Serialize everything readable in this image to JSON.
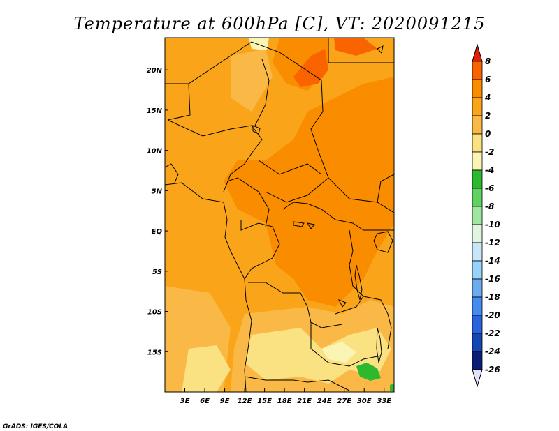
{
  "title": "Temperature at 600hPa [C], VT: 2020091215",
  "credit": "GrADS: IGES/COLA",
  "map": {
    "lon_range": [
      0,
      34.5
    ],
    "lat_range": [
      -20,
      24
    ],
    "x_ticks": [
      {
        "value": 3,
        "label": "3E"
      },
      {
        "value": 6,
        "label": "6E"
      },
      {
        "value": 9,
        "label": "9E"
      },
      {
        "value": 12,
        "label": "12E"
      },
      {
        "value": 15,
        "label": "15E"
      },
      {
        "value": 18,
        "label": "18E"
      },
      {
        "value": 21,
        "label": "21E"
      },
      {
        "value": 24,
        "label": "24E"
      },
      {
        "value": 27,
        "label": "27E"
      },
      {
        "value": 30,
        "label": "30E"
      },
      {
        "value": 33,
        "label": "33E"
      }
    ],
    "y_ticks": [
      {
        "value": 20,
        "label": "20N"
      },
      {
        "value": 15,
        "label": "15N"
      },
      {
        "value": 10,
        "label": "10N"
      },
      {
        "value": 5,
        "label": "5N"
      },
      {
        "value": 0,
        "label": "EQ"
      },
      {
        "value": -5,
        "label": "5S"
      },
      {
        "value": -10,
        "label": "10S"
      },
      {
        "value": -15,
        "label": "15S"
      }
    ]
  },
  "colorbar": {
    "levels": [
      "8",
      "6",
      "4",
      "2",
      "0",
      "-2",
      "-4",
      "-6",
      "-8",
      "-10",
      "-12",
      "-14",
      "-16",
      "-18",
      "-20",
      "-22",
      "-24",
      "-26"
    ],
    "colors": [
      "#f0280a",
      "#fa6400",
      "#fa8c00",
      "#faa519",
      "#fab946",
      "#fae182",
      "#faf5b4",
      "#2eb82e",
      "#5fd25f",
      "#a0e6a0",
      "#e1f5e1",
      "#c8e6fa",
      "#96d2fa",
      "#6eaaf0",
      "#468cf0",
      "#2864dc",
      "#1446b4",
      "#0a1e78",
      "#000055"
    ],
    "top_color": "#e01e0a",
    "bottom_color": "#e1e1fa"
  }
}
